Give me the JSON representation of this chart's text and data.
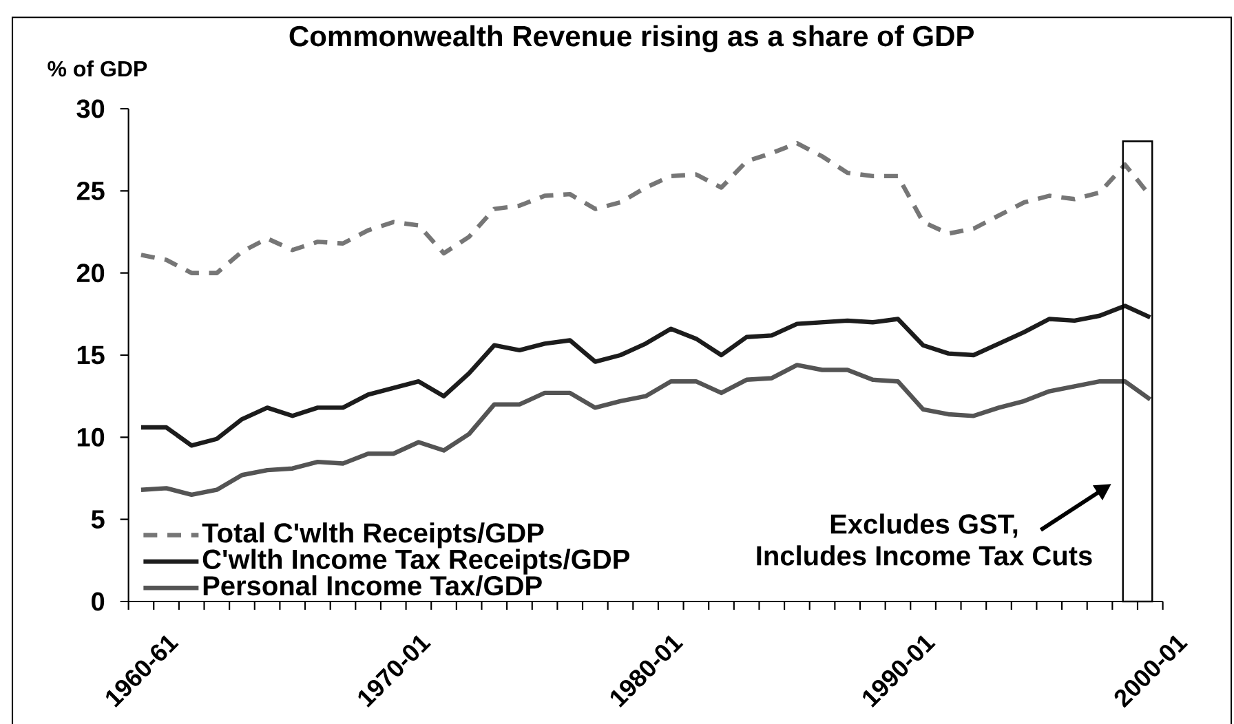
{
  "chart_data": {
    "type": "line",
    "title": "Commonwealth Revenue rising as a share of GDP",
    "ylabel": "% of GDP",
    "categories": [
      "1960-61",
      null,
      null,
      null,
      null,
      null,
      null,
      null,
      null,
      null,
      "1970-01",
      null,
      null,
      null,
      null,
      null,
      null,
      null,
      null,
      null,
      "1980-01",
      null,
      null,
      null,
      null,
      null,
      null,
      null,
      null,
      null,
      "1990-01",
      null,
      null,
      null,
      null,
      null,
      null,
      null,
      null,
      null,
      "2000-01"
    ],
    "series": [
      {
        "name": "Total C'wlth Receipts/GDP",
        "color": "#767676",
        "line_style": "dashed",
        "values": [
          21.1,
          20.8,
          20.0,
          20.0,
          21.3,
          22.1,
          21.4,
          21.9,
          21.8,
          22.6,
          23.1,
          22.9,
          21.2,
          22.2,
          23.9,
          24.1,
          24.7,
          24.8,
          23.9,
          24.3,
          25.2,
          25.9,
          26.0,
          25.2,
          26.8,
          27.3,
          27.9,
          27.1,
          26.1,
          25.9,
          25.9,
          23.1,
          22.4,
          22.7,
          23.5,
          24.3,
          24.7,
          24.5,
          24.9,
          26.6,
          24.7
        ]
      },
      {
        "name": "C'wlth Income Tax Receipts/GDP",
        "color": "#1c1c1c",
        "line_style": "solid",
        "values": [
          10.6,
          10.6,
          9.5,
          9.9,
          11.1,
          11.8,
          11.3,
          11.8,
          11.8,
          12.6,
          13.0,
          13.4,
          12.5,
          13.9,
          15.6,
          15.3,
          15.7,
          15.9,
          14.6,
          15.0,
          15.7,
          16.6,
          16.0,
          15.0,
          16.1,
          16.2,
          16.9,
          17.0,
          17.1,
          17.0,
          17.2,
          15.6,
          15.1,
          15.0,
          15.7,
          16.4,
          17.2,
          17.1,
          17.4,
          18.0,
          17.3
        ]
      },
      {
        "name": "Personal Income Tax/GDP",
        "color": "#545454",
        "line_style": "solid",
        "values": [
          6.8,
          6.9,
          6.5,
          6.8,
          7.7,
          8.0,
          8.1,
          8.5,
          8.4,
          9.0,
          9.0,
          9.7,
          9.2,
          10.2,
          12.0,
          12.0,
          12.7,
          12.7,
          11.8,
          12.2,
          12.5,
          13.4,
          13.4,
          12.7,
          13.5,
          13.6,
          14.4,
          14.1,
          14.1,
          13.5,
          13.4,
          11.7,
          11.4,
          11.3,
          11.8,
          12.2,
          12.8,
          13.1,
          13.4,
          13.4,
          12.3
        ]
      }
    ],
    "ylim": [
      0,
      30
    ],
    "yticks": [
      0,
      5,
      10,
      15,
      20,
      25,
      30
    ],
    "legend": "bottom left",
    "marker": "none",
    "annotations": [
      "Excludes GST,",
      "Includes Income Tax Cuts"
    ]
  }
}
